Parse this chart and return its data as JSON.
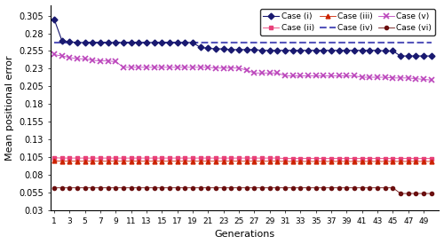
{
  "xlabel": "Generations",
  "ylabel": "Mean positional error",
  "generations": [
    1,
    2,
    3,
    4,
    5,
    6,
    7,
    8,
    9,
    10,
    11,
    12,
    13,
    14,
    15,
    16,
    17,
    18,
    19,
    20,
    21,
    22,
    23,
    24,
    25,
    26,
    27,
    28,
    29,
    30,
    31,
    32,
    33,
    34,
    35,
    36,
    37,
    38,
    39,
    40,
    41,
    42,
    43,
    44,
    45,
    46,
    47,
    48,
    49,
    50
  ],
  "case_i": [
    0.3,
    0.27,
    0.268,
    0.267,
    0.267,
    0.267,
    0.267,
    0.267,
    0.267,
    0.267,
    0.267,
    0.267,
    0.267,
    0.267,
    0.267,
    0.267,
    0.267,
    0.267,
    0.267,
    0.26,
    0.259,
    0.258,
    0.258,
    0.257,
    0.257,
    0.257,
    0.257,
    0.256,
    0.256,
    0.256,
    0.256,
    0.256,
    0.256,
    0.256,
    0.256,
    0.256,
    0.256,
    0.256,
    0.256,
    0.256,
    0.256,
    0.256,
    0.256,
    0.255,
    0.255,
    0.248,
    0.248,
    0.248,
    0.248,
    0.248
  ],
  "case_ii": [
    0.1045,
    0.104,
    0.104,
    0.104,
    0.104,
    0.104,
    0.104,
    0.104,
    0.104,
    0.104,
    0.104,
    0.104,
    0.104,
    0.104,
    0.104,
    0.104,
    0.104,
    0.104,
    0.104,
    0.104,
    0.104,
    0.104,
    0.104,
    0.104,
    0.104,
    0.104,
    0.104,
    0.104,
    0.104,
    0.104,
    0.1035,
    0.1035,
    0.1035,
    0.1035,
    0.1035,
    0.1035,
    0.1035,
    0.1035,
    0.1035,
    0.1035,
    0.1035,
    0.1035,
    0.1035,
    0.1035,
    0.1035,
    0.1035,
    0.1035,
    0.1035,
    0.1035,
    0.1035
  ],
  "case_iii": [
    0.1,
    0.0995,
    0.0995,
    0.0995,
    0.0995,
    0.0995,
    0.0995,
    0.0995,
    0.0995,
    0.0995,
    0.0995,
    0.0995,
    0.0995,
    0.0995,
    0.0995,
    0.0995,
    0.0995,
    0.0995,
    0.0995,
    0.0995,
    0.0995,
    0.0995,
    0.0995,
    0.0995,
    0.0995,
    0.0995,
    0.0995,
    0.0995,
    0.0995,
    0.0995,
    0.0992,
    0.0992,
    0.0992,
    0.0992,
    0.0992,
    0.0992,
    0.0992,
    0.0992,
    0.0992,
    0.0992,
    0.0992,
    0.0992,
    0.0992,
    0.0992,
    0.0992,
    0.0992,
    0.0992,
    0.0992,
    0.0992,
    0.0992
  ],
  "case_iv": [
    0.267,
    0.267,
    0.267,
    0.267,
    0.267,
    0.267,
    0.267,
    0.267,
    0.267,
    0.267,
    0.267,
    0.267,
    0.267,
    0.267,
    0.267,
    0.267,
    0.267,
    0.267,
    0.267,
    0.267,
    0.267,
    0.267,
    0.267,
    0.267,
    0.267,
    0.267,
    0.267,
    0.267,
    0.267,
    0.267,
    0.267,
    0.267,
    0.267,
    0.267,
    0.267,
    0.267,
    0.267,
    0.267,
    0.267,
    0.267,
    0.267,
    0.267,
    0.267,
    0.267,
    0.267,
    0.267,
    0.267,
    0.267,
    0.267,
    0.267
  ],
  "case_v": [
    0.25,
    0.248,
    0.246,
    0.244,
    0.244,
    0.242,
    0.241,
    0.241,
    0.24,
    0.232,
    0.232,
    0.232,
    0.232,
    0.232,
    0.232,
    0.232,
    0.232,
    0.232,
    0.232,
    0.232,
    0.232,
    0.231,
    0.231,
    0.231,
    0.231,
    0.228,
    0.224,
    0.224,
    0.224,
    0.224,
    0.22,
    0.22,
    0.22,
    0.22,
    0.22,
    0.22,
    0.22,
    0.22,
    0.22,
    0.22,
    0.218,
    0.218,
    0.218,
    0.218,
    0.217,
    0.217,
    0.217,
    0.216,
    0.215,
    0.214
  ],
  "case_vi": [
    0.062,
    0.062,
    0.062,
    0.062,
    0.062,
    0.062,
    0.062,
    0.062,
    0.062,
    0.062,
    0.062,
    0.062,
    0.062,
    0.062,
    0.062,
    0.062,
    0.062,
    0.062,
    0.062,
    0.062,
    0.062,
    0.062,
    0.062,
    0.062,
    0.062,
    0.062,
    0.062,
    0.062,
    0.062,
    0.062,
    0.062,
    0.062,
    0.062,
    0.062,
    0.062,
    0.062,
    0.062,
    0.062,
    0.062,
    0.062,
    0.062,
    0.062,
    0.062,
    0.062,
    0.062,
    0.054,
    0.054,
    0.054,
    0.054,
    0.054
  ],
  "ylim": [
    0.03,
    0.32
  ],
  "yticks": [
    0.03,
    0.055,
    0.08,
    0.105,
    0.13,
    0.155,
    0.18,
    0.205,
    0.23,
    0.255,
    0.28,
    0.305
  ],
  "ytick_labels": [
    "0.03",
    "0.055",
    "0.08",
    "0.105",
    "0.13",
    "0.155",
    "0.18",
    "0.205",
    "0.23",
    "0.255",
    "0.28",
    "0.305"
  ],
  "xtick_labels": [
    "1",
    "3",
    "5",
    "7",
    "9",
    "11",
    "13",
    "15",
    "17",
    "19",
    "21",
    "23",
    "25",
    "27",
    "29",
    "31",
    "33",
    "35",
    "37",
    "39",
    "41",
    "43",
    "45",
    "47",
    "49"
  ],
  "xtick_positions": [
    1,
    3,
    5,
    7,
    9,
    11,
    13,
    15,
    17,
    19,
    21,
    23,
    25,
    27,
    29,
    31,
    33,
    35,
    37,
    39,
    41,
    43,
    45,
    47,
    49
  ],
  "colors": {
    "case_i": "#191970",
    "case_ii": "#E8417A",
    "case_iii": "#CC2200",
    "case_iv": "#5555BB",
    "case_v": "#BB44BB",
    "case_vi": "#6B0F0F"
  },
  "legend_labels": [
    "Case (i)",
    "Case (ii)",
    "Case (iii)",
    "Case (iv)",
    "Case (v)",
    "Case (vi)"
  ],
  "legend_order": [
    "case_i",
    "case_ii",
    "case_iii",
    "case_iv",
    "case_v",
    "case_vi"
  ]
}
